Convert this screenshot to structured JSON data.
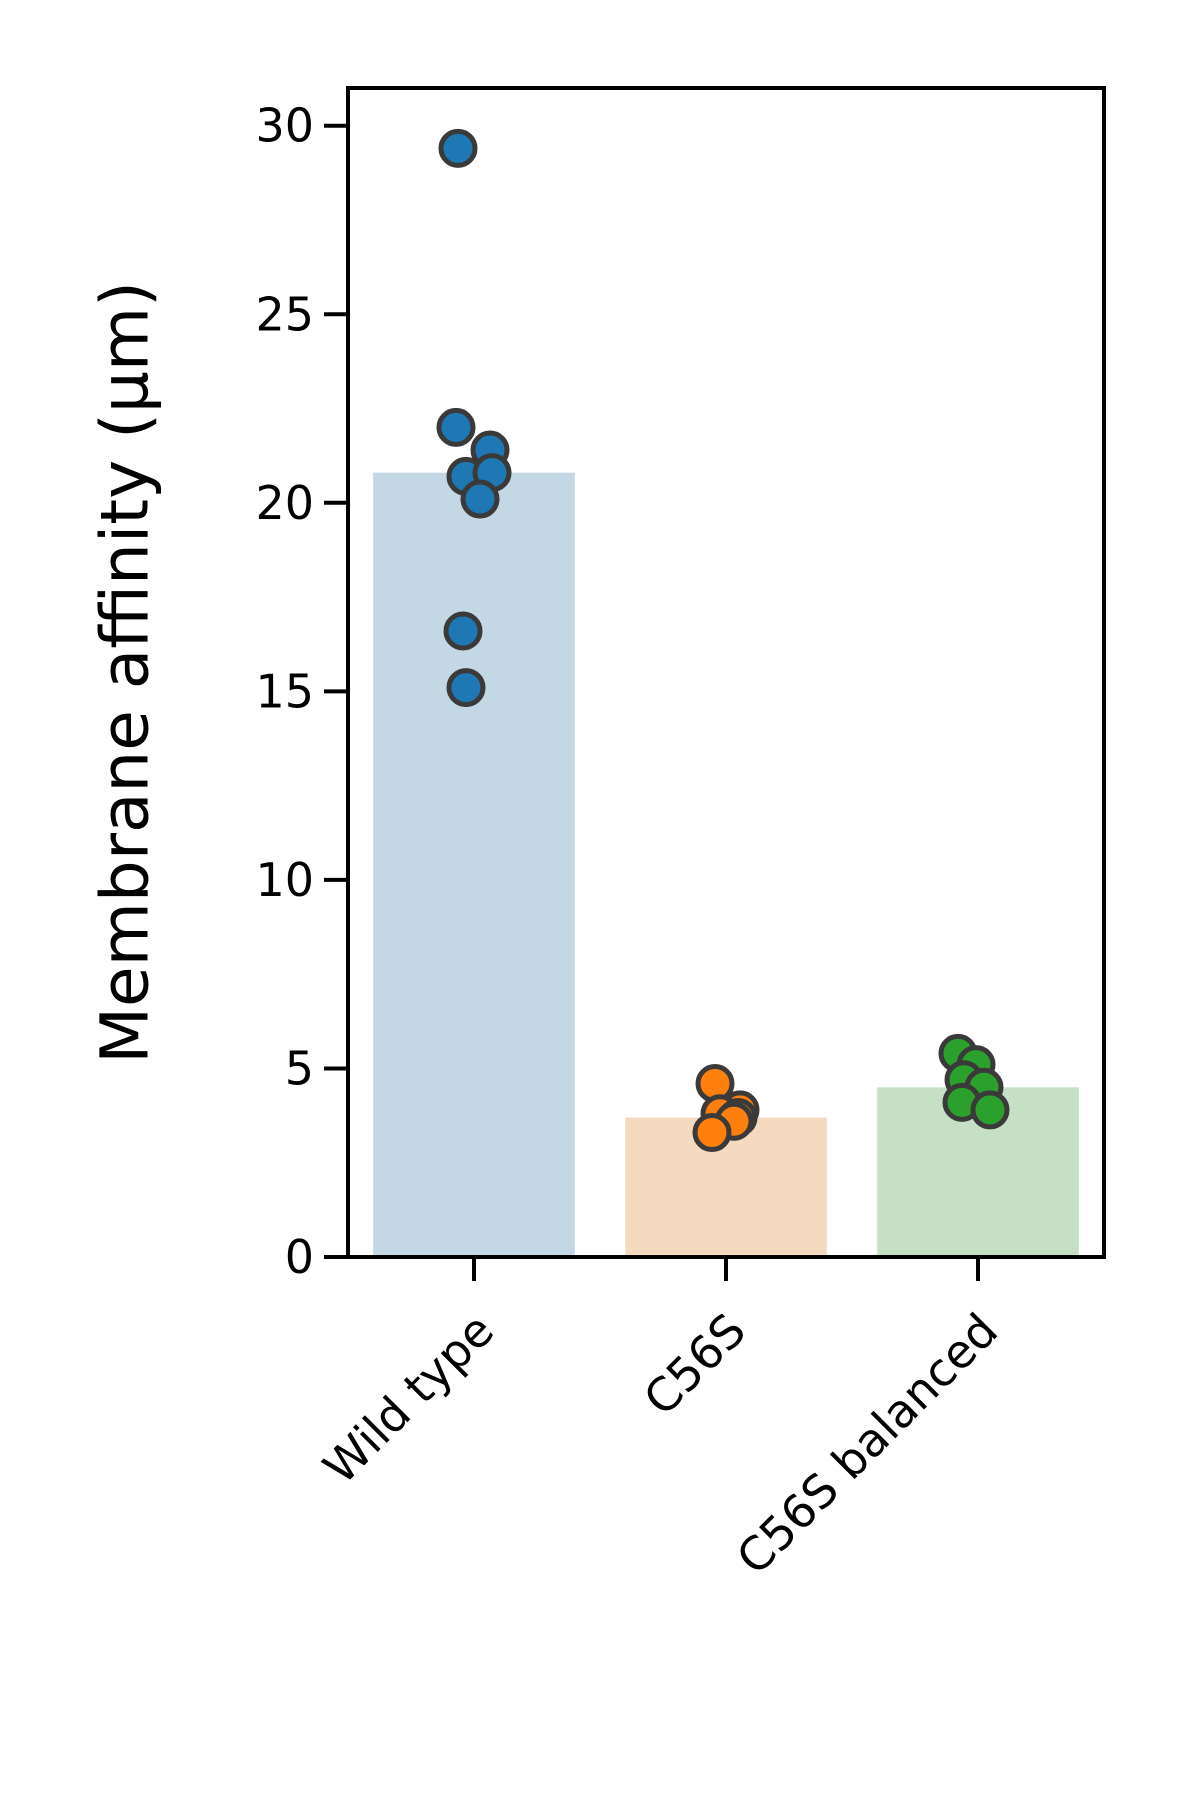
{
  "chart_data": {
    "type": "bar",
    "title": "",
    "xlabel": "",
    "ylabel": "Membrane affinity (µm)",
    "ylim": [
      0,
      31
    ],
    "yticks": [
      0,
      5,
      10,
      15,
      20,
      25,
      30
    ],
    "grid": false,
    "legend": "none",
    "categories": [
      "Wild type",
      "C56S",
      "C56S balanced"
    ],
    "means": [
      20.8,
      3.7,
      4.5
    ],
    "bar_colors": [
      "#c4d7e5",
      "#f6dac0",
      "#c6e0c6"
    ],
    "point_colors": [
      "#1f77b4",
      "#ff7f0e",
      "#2ca02c"
    ],
    "point_edge_color": "#3a3a3a",
    "points": [
      [
        29.4,
        22.0,
        21.4,
        20.7,
        20.8,
        20.1,
        16.6,
        15.1
      ],
      [
        4.6,
        3.9,
        3.8,
        3.7,
        3.6,
        3.3
      ],
      [
        5.4,
        5.1,
        4.7,
        4.5,
        4.1,
        3.9
      ]
    ]
  }
}
